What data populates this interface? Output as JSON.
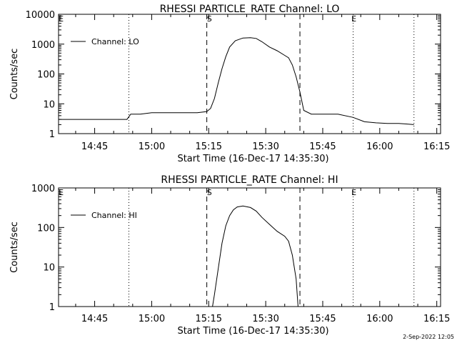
{
  "footer": {
    "date_stamp": "2-Sep-2022 12:05"
  },
  "chart_data": [
    {
      "type": "line",
      "title": "RHESSI PARTICLE_RATE Channel: LO",
      "xlabel": "Start Time (16-Dec-17 14:35:30)",
      "ylabel": "Counts/sec",
      "yscale": "log",
      "xlim": [
        "14:35:30",
        "16:16:00"
      ],
      "ylim": [
        1,
        10000
      ],
      "x_ticks": [
        "14:45",
        "15:00",
        "15:15",
        "15:30",
        "15:45",
        "16:00",
        "16:15"
      ],
      "y_ticks": [
        "1",
        "10",
        "100",
        "1000",
        "10000"
      ],
      "legend": {
        "position": "top-left",
        "entries": [
          "Channel: LO"
        ]
      },
      "markers_dotted": [
        "14:54:00",
        "15:53:00",
        "16:09:00"
      ],
      "markers_dashed": [
        "15:14:30",
        "15:39:00"
      ],
      "marker_labels": [
        {
          "text": "E",
          "x": "14:36:00"
        },
        {
          "text": "S",
          "x": "15:15:00"
        },
        {
          "text": "E",
          "x": "15:53:00"
        }
      ],
      "series": [
        {
          "name": "Channel: LO",
          "x": [
            "14:35:30",
            "14:38:00",
            "14:41:00",
            "14:44:00",
            "14:47:00",
            "14:50:00",
            "14:53:30",
            "14:54:30",
            "14:57:00",
            "15:00:00",
            "15:04:00",
            "15:08:00",
            "15:12:00",
            "15:14:30",
            "15:15:30",
            "15:16:30",
            "15:17:30",
            "15:18:30",
            "15:19:30",
            "15:20:30",
            "15:22:00",
            "15:24:00",
            "15:26:00",
            "15:27:30",
            "15:29:00",
            "15:31:00",
            "15:33:00",
            "15:35:00",
            "15:36:00",
            "15:37:00",
            "15:38:00",
            "15:39:00",
            "15:40:00",
            "15:42:00",
            "15:45:00",
            "15:49:00",
            "15:53:00",
            "15:56:00",
            "15:59:00",
            "16:02:00",
            "16:05:00",
            "16:07:00",
            "16:09:00"
          ],
          "y": [
            3,
            3,
            3,
            3,
            3,
            3,
            3,
            4.5,
            4.5,
            5,
            5,
            5,
            5,
            5.5,
            7,
            15,
            50,
            150,
            380,
            800,
            1300,
            1600,
            1650,
            1550,
            1200,
            800,
            600,
            420,
            350,
            200,
            80,
            25,
            6,
            4.5,
            4.5,
            4.5,
            3.5,
            2.5,
            2.3,
            2.2,
            2.2,
            2.1,
            2
          ]
        }
      ]
    },
    {
      "type": "line",
      "title": "RHESSI PARTICLE_RATE Channel: HI",
      "xlabel": "Start Time (16-Dec-17 14:35:30)",
      "ylabel": "Counts/sec",
      "yscale": "log",
      "xlim": [
        "14:35:30",
        "16:16:00"
      ],
      "ylim": [
        1,
        1000
      ],
      "x_ticks": [
        "14:45",
        "15:00",
        "15:15",
        "15:30",
        "15:45",
        "16:00",
        "16:15"
      ],
      "y_ticks": [
        "1",
        "10",
        "100",
        "1000"
      ],
      "legend": {
        "position": "top-left",
        "entries": [
          "Channel: HI"
        ]
      },
      "markers_dotted": [
        "14:54:00",
        "15:53:00",
        "16:09:00"
      ],
      "markers_dashed": [
        "15:14:30",
        "15:39:00"
      ],
      "marker_labels": [
        {
          "text": "E",
          "x": "14:36:00"
        },
        {
          "text": "S",
          "x": "15:15:00"
        },
        {
          "text": "E",
          "x": "15:53:00"
        }
      ],
      "series": [
        {
          "name": "Channel: HI",
          "x": [
            "15:16:00",
            "15:16:30",
            "15:17:30",
            "15:18:30",
            "15:19:30",
            "15:20:30",
            "15:21:30",
            "15:22:30",
            "15:24:00",
            "15:26:00",
            "15:27:30",
            "15:29:00",
            "15:31:00",
            "15:33:00",
            "15:35:00",
            "15:36:00",
            "15:37:00",
            "15:38:00",
            "15:38:30"
          ],
          "y": [
            1,
            2,
            9,
            40,
            110,
            200,
            280,
            330,
            350,
            320,
            260,
            180,
            120,
            80,
            60,
            45,
            20,
            5,
            1
          ]
        }
      ]
    }
  ]
}
